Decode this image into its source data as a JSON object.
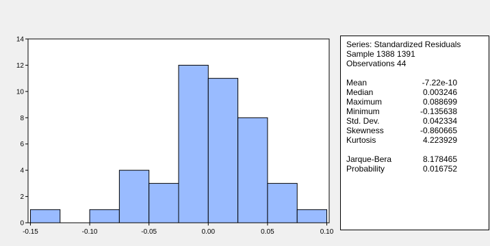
{
  "chart_data": {
    "type": "bar",
    "subtype": "histogram",
    "bins": [
      {
        "x0": -0.15,
        "x1": -0.125,
        "count": 1
      },
      {
        "x0": -0.125,
        "x1": -0.1,
        "count": 0
      },
      {
        "x0": -0.1,
        "x1": -0.075,
        "count": 1
      },
      {
        "x0": -0.075,
        "x1": -0.05,
        "count": 4
      },
      {
        "x0": -0.05,
        "x1": -0.025,
        "count": 3
      },
      {
        "x0": -0.025,
        "x1": 0.0,
        "count": 12
      },
      {
        "x0": 0.0,
        "x1": 0.025,
        "count": 11
      },
      {
        "x0": 0.025,
        "x1": 0.05,
        "count": 8
      },
      {
        "x0": 0.05,
        "x1": 0.075,
        "count": 3
      },
      {
        "x0": 0.075,
        "x1": 0.1,
        "count": 1
      }
    ],
    "x_ticks": [
      "-0.15",
      "-0.10",
      "-0.05",
      "0.00",
      "0.05",
      "0.10"
    ],
    "x_tick_values": [
      -0.15,
      -0.1,
      -0.05,
      0.0,
      0.05,
      0.1
    ],
    "y_ticks": [
      "0",
      "2",
      "4",
      "6",
      "8",
      "10",
      "12",
      "14"
    ],
    "y_tick_values": [
      0,
      2,
      4,
      6,
      8,
      10,
      12,
      14
    ],
    "xlim": [
      -0.152,
      0.102
    ],
    "ylim": [
      0,
      14
    ],
    "grid": false,
    "bar_color": "#99bbff",
    "bar_edge_color": "#000000"
  },
  "stats": {
    "series": "Series: Standardized Residuals",
    "sample": "Sample 1388 1391",
    "observations": "Observations 44",
    "rows": [
      {
        "label": "Mean",
        "value": "-7.22e-10"
      },
      {
        "label": "Median",
        "value": "0.003246"
      },
      {
        "label": "Maximum",
        "value": "0.088699"
      },
      {
        "label": "Minimum",
        "value": "-0.135638"
      },
      {
        "label": "Std. Dev.",
        "value": "0.042334"
      },
      {
        "label": "Skewness",
        "value": "-0.860665"
      },
      {
        "label": "Kurtosis",
        "value": "4.223929"
      }
    ],
    "rows2": [
      {
        "label": "Jarque-Bera",
        "value": "8.178465"
      },
      {
        "label": "Probability",
        "value": "0.016752"
      }
    ]
  }
}
